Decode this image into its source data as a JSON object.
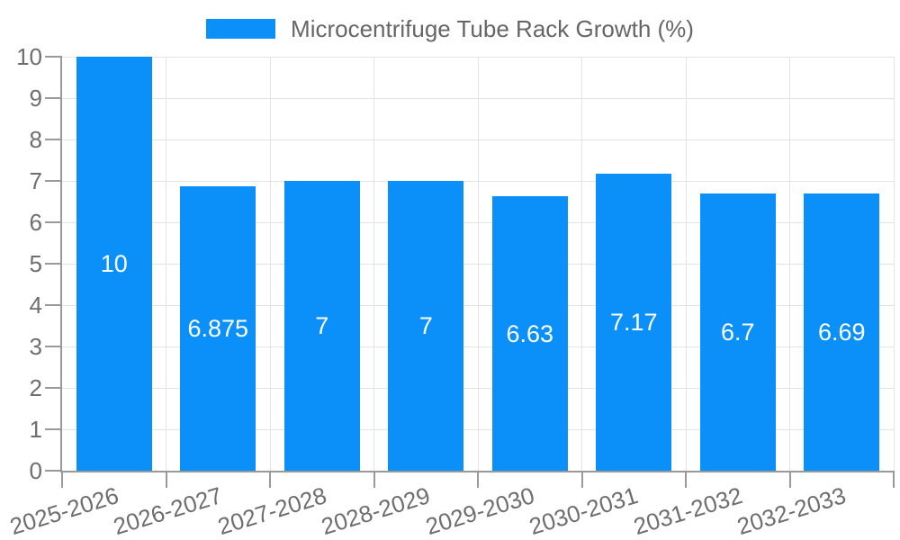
{
  "chart_data": {
    "type": "bar",
    "title": "Microcentrifuge Tube Rack Growth (%)",
    "legend": {
      "label": "Microcentrifuge Tube Rack Growth (%)",
      "position": "top-center"
    },
    "categories": [
      "2025-2026",
      "2026-2027",
      "2027-2028",
      "2028-2029",
      "2029-2030",
      "2030-2031",
      "2031-2032",
      "2032-2033"
    ],
    "values": [
      10,
      6.875,
      7,
      7,
      6.63,
      7.17,
      6.7,
      6.69
    ],
    "value_labels": [
      "10",
      "6.875",
      "7",
      "7",
      "6.63",
      "7.17",
      "6.7",
      "6.69"
    ],
    "xlabel": "",
    "ylabel": "",
    "ylim": [
      0,
      10
    ],
    "yticks": [
      0,
      1,
      2,
      3,
      4,
      5,
      6,
      7,
      8,
      9,
      10
    ],
    "grid": true,
    "x_tick_rotation_deg": -17,
    "value_label_position": "inside-center",
    "colors": {
      "bar": "#0a90f8",
      "bar_label": "#ffffff",
      "grid": "#e3e3e3",
      "axis": "#999999",
      "tick_label": "#6e6e6e",
      "legend_text": "#666666",
      "background": "#ffffff"
    }
  }
}
